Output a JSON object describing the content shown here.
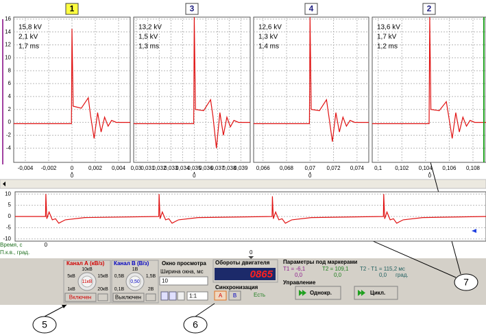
{
  "ylim": [
    -6.2,
    16.3
  ],
  "yticks": [
    16,
    14,
    12,
    10,
    8,
    6,
    4,
    2,
    0,
    -2,
    -4
  ],
  "panels": [
    {
      "number": "1",
      "readouts": [
        "15,8 kV",
        "2,1 kV",
        "1,7 ms"
      ],
      "xlim": [
        -0.005,
        0.005
      ],
      "xticks": [
        {
          "value": -0.004,
          "label": "-0,004"
        },
        {
          "value": -0.002,
          "label": "-0,002"
        },
        0,
        {
          "value": 0.002,
          "label": "0,002"
        },
        {
          "value": 0.004,
          "label": "0,004"
        }
      ],
      "angle_tick": {
        "value": 0,
        "label": "0"
      },
      "trace": {
        "x": [
          -0.005,
          -5e-05,
          0,
          0.0001,
          0.0008,
          0.0014,
          0.0016,
          0.0019,
          0.0022,
          0.0025,
          0.0028,
          0.0031,
          0.0034,
          0.0038,
          0.005
        ],
        "values": [
          -0.2,
          -0.2,
          14.5,
          2.5,
          2.2,
          3.8,
          1,
          -2.5,
          1.5,
          -1.5,
          0.8,
          -0.6,
          0.3,
          0,
          0
        ]
      }
    },
    {
      "number": "3",
      "readouts": [
        "13,2 kV",
        "1,5 kV",
        "1,3 ms"
      ],
      "xlim": [
        0.0298,
        0.0398
      ],
      "xticks": [
        {
          "value": 0.03,
          "label": "0,03"
        },
        {
          "value": 0.031,
          "label": "0,031"
        },
        {
          "value": 0.032,
          "label": "0,032"
        },
        {
          "value": 0.033,
          "label": "0,033"
        },
        {
          "value": 0.034,
          "label": "0,034"
        },
        {
          "value": 0.035,
          "label": "0,035"
        },
        {
          "value": 0.036,
          "label": "0,036"
        },
        {
          "value": 0.037,
          "label": "0,037"
        },
        {
          "value": 0.038,
          "label": "0,038"
        },
        {
          "value": 0.039,
          "label": "0,039"
        }
      ],
      "angle_tick": {
        "value": 0.035,
        "label": "0"
      },
      "trace": {
        "x": [
          0.0298,
          0.03495,
          0.035,
          0.0351,
          0.0358,
          0.0364,
          0.0366,
          0.0369,
          0.0372,
          0.0375,
          0.0378,
          0.0381,
          0.0384,
          0.0388,
          0.0398
        ],
        "values": [
          -0.2,
          -0.2,
          16.3,
          2,
          1.8,
          3.5,
          1,
          -4,
          1.5,
          -2,
          0.8,
          -0.7,
          0.3,
          0,
          0
        ]
      }
    },
    {
      "number": "4",
      "readouts": [
        "12,6 kV",
        "1,3 kV",
        "1,4 ms"
      ],
      "xlim": [
        0.0652,
        0.075
      ],
      "xticks": [
        {
          "value": 0.066,
          "label": "0,066"
        },
        {
          "value": 0.068,
          "label": "0,068"
        },
        {
          "value": 0.07,
          "label": "0,07"
        },
        {
          "value": 0.072,
          "label": "0,072"
        },
        {
          "value": 0.074,
          "label": "0,074"
        }
      ],
      "angle_tick": {
        "value": 0.07,
        "label": "0"
      },
      "trace": {
        "x": [
          0.0652,
          0.06995,
          0.07,
          0.0701,
          0.0708,
          0.0714,
          0.0716,
          0.0719,
          0.0722,
          0.0725,
          0.0728,
          0.0731,
          0.0734,
          0.0738,
          0.075
        ],
        "values": [
          -0.2,
          -0.2,
          16.3,
          2,
          1.8,
          3.5,
          1,
          -3,
          1.5,
          -1.5,
          0.8,
          -0.6,
          0.3,
          0,
          0
        ]
      }
    },
    {
      "number": "2",
      "readouts": [
        "13,6 kV",
        "1,7 kV",
        "1,2 ms"
      ],
      "xlim": [
        0.0995,
        0.1091
      ],
      "xticks": [
        {
          "value": 0.1,
          "label": "0,1"
        },
        {
          "value": 0.102,
          "label": "0,102"
        },
        {
          "value": 0.104,
          "label": "0,104"
        },
        {
          "value": 0.106,
          "label": "0,106"
        },
        {
          "value": 0.108,
          "label": "0,108"
        }
      ],
      "angle_tick": {
        "value": 0.10435,
        "label": "0"
      },
      "trace": {
        "x": [
          0.0995,
          0.1043,
          0.10435,
          0.10445,
          0.10515,
          0.10575,
          0.10595,
          0.10625,
          0.10655,
          0.10685,
          0.10715,
          0.10745,
          0.10775,
          0.10815,
          0.1091
        ],
        "values": [
          -0.2,
          -0.2,
          16.3,
          2,
          1.8,
          3.2,
          1,
          -2.5,
          1.5,
          -1.5,
          0.8,
          -0.6,
          0.3,
          0,
          0
        ]
      }
    }
  ],
  "overview": {
    "ylim": [
      -11,
      11
    ],
    "yticks": [
      10,
      5,
      0,
      -5,
      -10
    ],
    "xlim": [
      -0.0095,
      0.136
    ],
    "time_label": "Время, с",
    "time_tick": 0,
    "angle_label": "П.к.в., град.",
    "angle_tick": {
      "value": 0.0634,
      "label": "0"
    },
    "trace": {
      "x": [
        -0.0095,
        -0.0001,
        0,
        0.0003,
        0.001,
        0.002,
        0.003,
        0.004,
        0.006,
        0.012,
        0.0349,
        0.035,
        0.0353,
        0.036,
        0.037,
        0.038,
        0.039,
        0.041,
        0.047,
        0.0699,
        0.07,
        0.0703,
        0.071,
        0.072,
        0.073,
        0.074,
        0.076,
        0.082,
        0.1043,
        0.1044,
        0.1047,
        0.1054,
        0.1064,
        0.1074,
        0.1084,
        0.1104,
        0.1164,
        0.136
      ],
      "values": [
        0,
        0,
        10,
        -1,
        2,
        -1.5,
        -1,
        -3,
        -1.5,
        -0.5,
        0,
        10,
        -1,
        2,
        -1.5,
        -1,
        -3,
        -1.5,
        -0.5,
        0,
        9,
        -1,
        2,
        -1.5,
        -1,
        -3,
        -1.5,
        -0.5,
        0,
        10,
        -1,
        2,
        -1.5,
        -1,
        -3,
        -1.5,
        -0.5,
        0
      ]
    }
  },
  "controls": {
    "channel_a": {
      "title": "Канал А (кВ/з)",
      "scale": [
        "10кВ",
        "5кВ",
        "15кВ",
        "1кВ",
        "20кВ"
      ],
      "setting": "11кВ",
      "button": "Включен"
    },
    "channel_b": {
      "title": "Канал В (В/з)",
      "scale": [
        "1В",
        "0,5В",
        "1,5В",
        "0,1В",
        "2В"
      ],
      "setting": "0,50",
      "button": "Выключен"
    },
    "view_window": {
      "title": "Окно просмотра",
      "width_label": "Ширина окна, мс",
      "width": "10",
      "zoom": "1:1"
    },
    "rpm": {
      "title": "Обороты двигателя",
      "value": "0865"
    },
    "sync": {
      "title": "Синхронизация",
      "a": "А",
      "b": "В",
      "status": "Есть"
    },
    "markers": {
      "title": "Параметры под маркерами",
      "t1": "T1 = -6,1",
      "t2": "T2 = 109,1",
      "diff": "T2 - T1 = 115,2 мс",
      "t1_angle": "0,0",
      "t2_angle": "0,0",
      "diff_angle": "0,0",
      "angle_unit": "град."
    },
    "control": {
      "title": "Управление",
      "single": "Однокр.",
      "cycle": "Цикл."
    }
  },
  "callouts": [
    "5",
    "6",
    "7"
  ]
}
